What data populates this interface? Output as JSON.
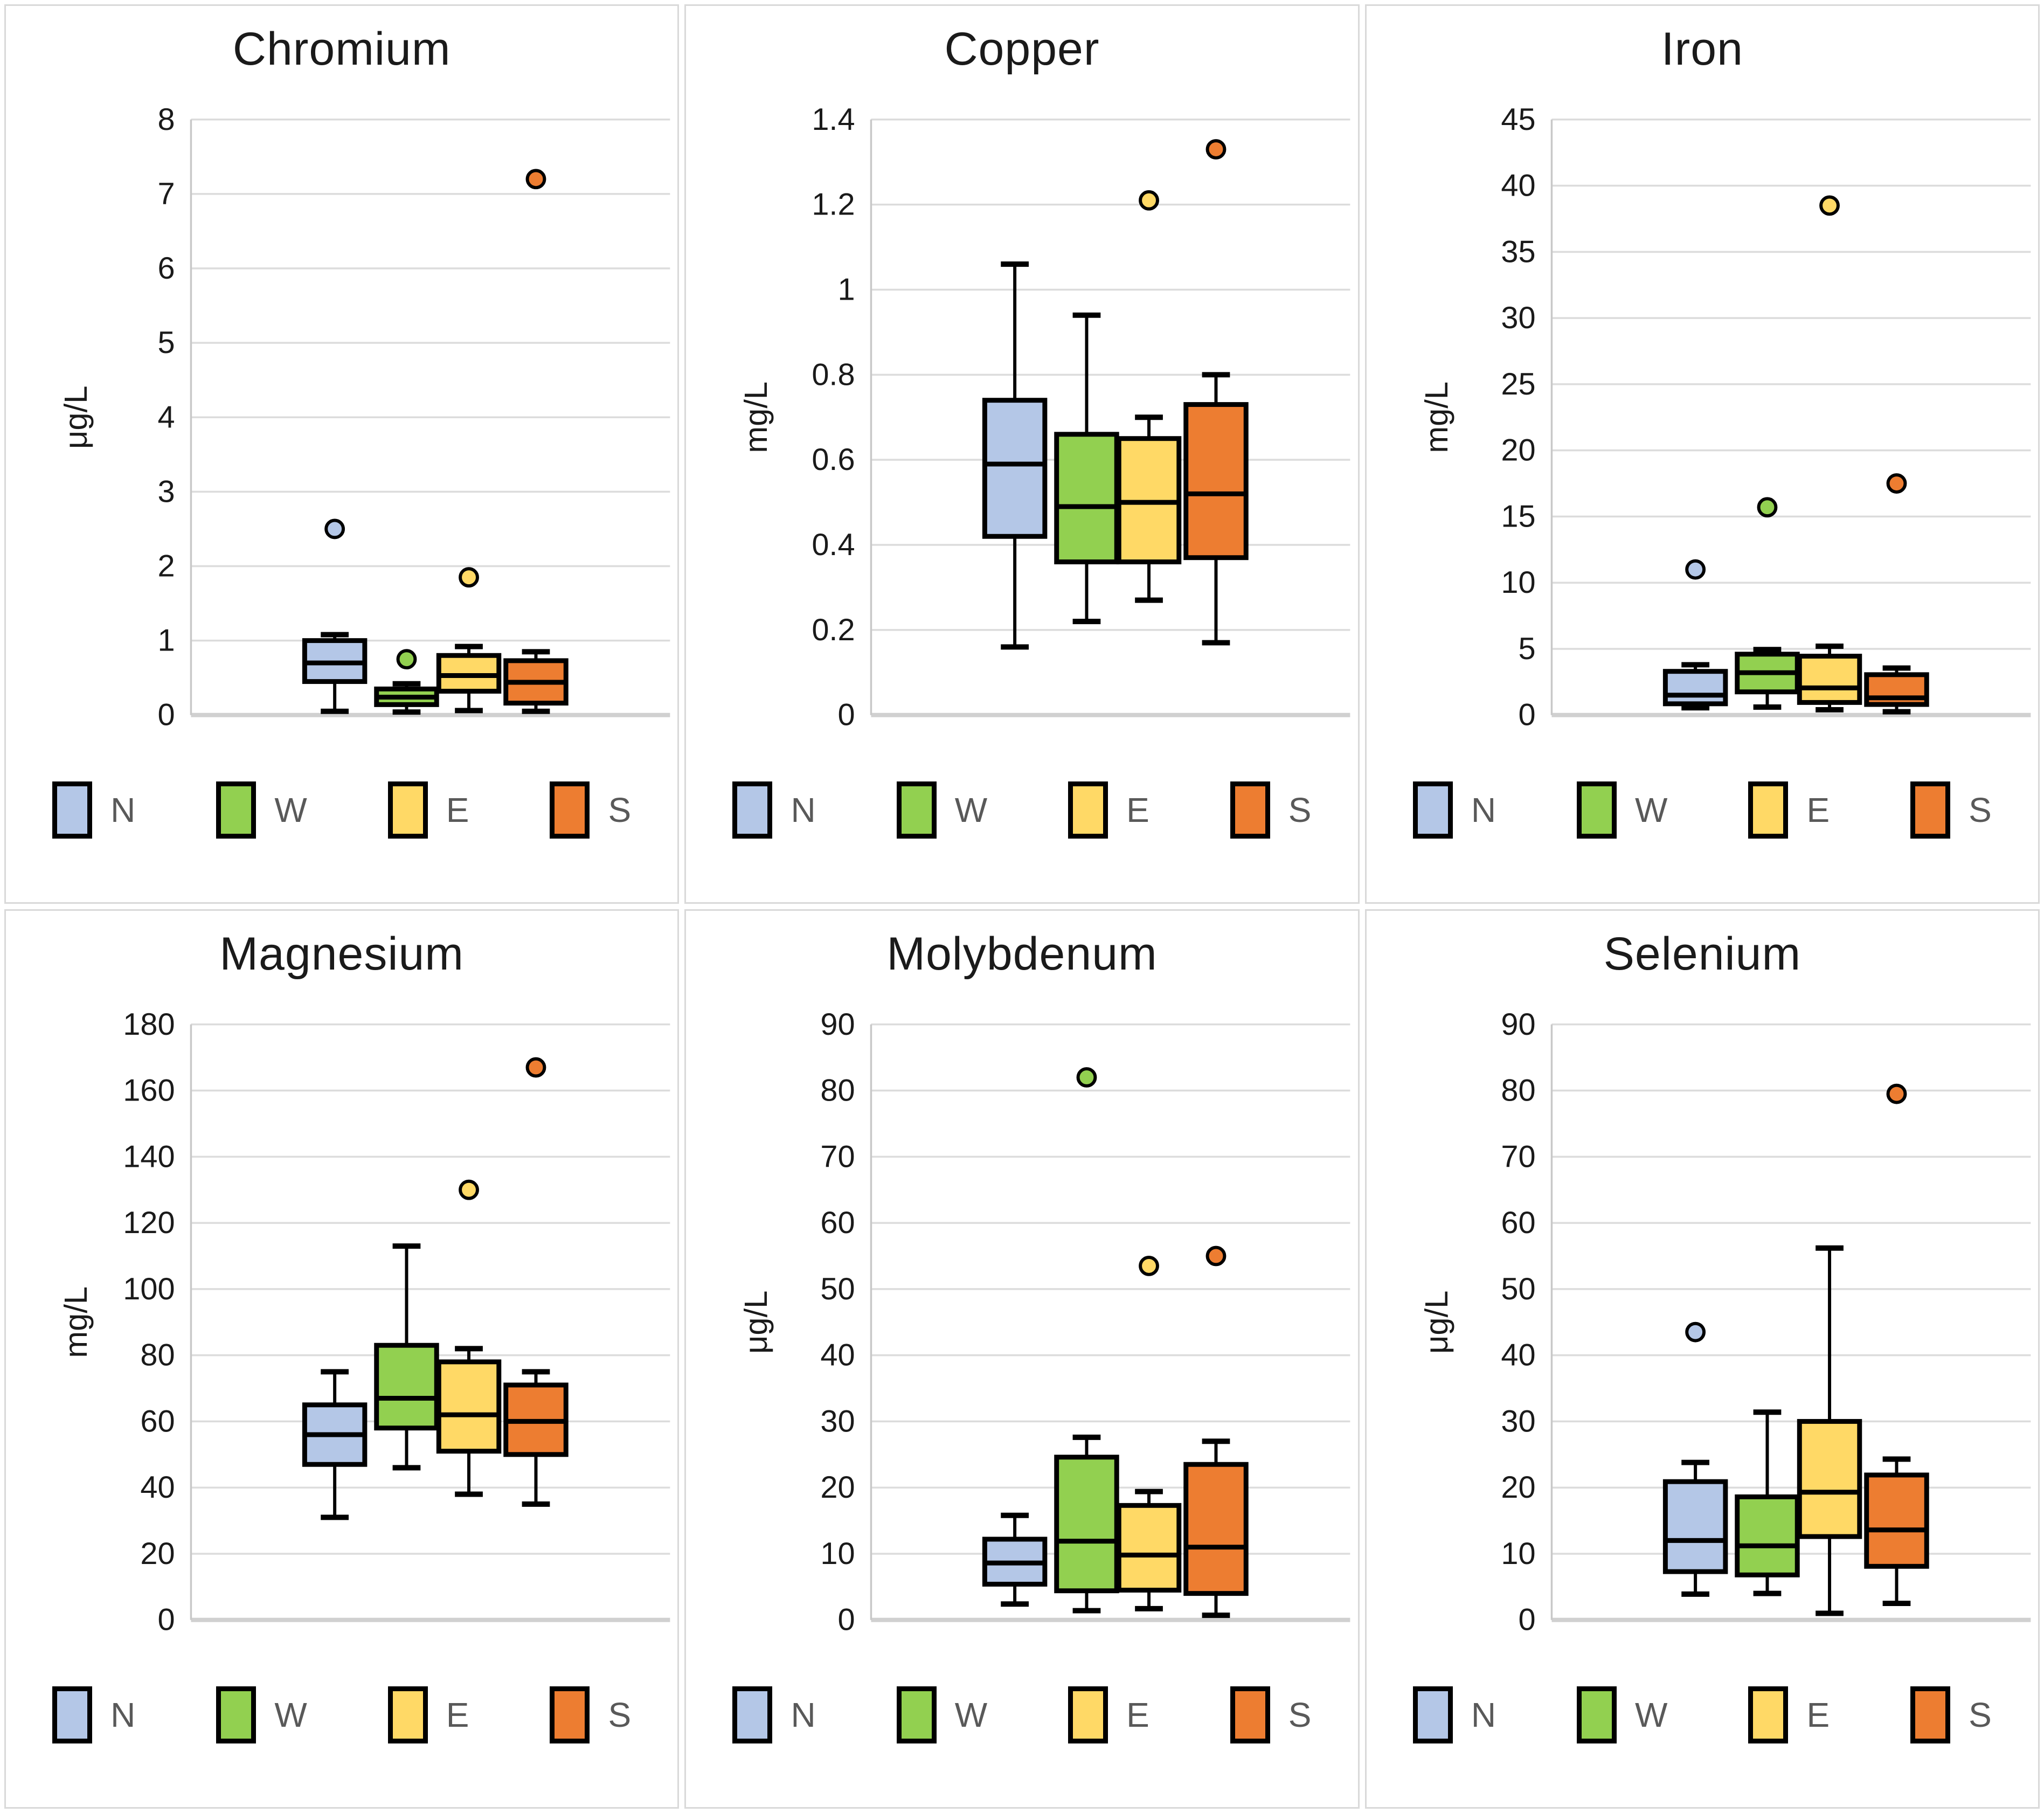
{
  "figure": {
    "layout": "2 rows x 3 columns of box-and-whisker charts",
    "background": "#ffffff",
    "panel_border": "#d9d9d9"
  },
  "colors": {
    "N": "#b4c7e7",
    "W": "#92d050",
    "E": "#ffd966",
    "S": "#ed7d31",
    "box_border": "#000000",
    "median_line": "#000000",
    "whisker": "#000000",
    "gridline": "#dcdcdc",
    "baseline": "#d0d0d0",
    "axis_line": "#c8c8c8",
    "title_text": "#1a1a1a",
    "tick_text": "#1a1a1a",
    "legend_text": "#595959"
  },
  "legend": {
    "position": "bottom",
    "items": [
      {
        "label": "N",
        "color_key": "N"
      },
      {
        "label": "W",
        "color_key": "W"
      },
      {
        "label": "E",
        "color_key": "E"
      },
      {
        "label": "S",
        "color_key": "S"
      }
    ]
  },
  "chart_data": [
    {
      "type": "boxplot",
      "title": "Chromium",
      "ylabel": "μg/L",
      "ylim": [
        0,
        8
      ],
      "yticks": [
        0,
        1,
        2,
        3,
        4,
        5,
        6,
        7,
        8
      ],
      "ytick_labels": [
        "0",
        "1",
        "2",
        "3",
        "4",
        "5",
        "6",
        "7",
        "8"
      ],
      "grid": true,
      "legend_position": "bottom",
      "series": [
        {
          "name": "N",
          "low": 0.05,
          "q1": 0.45,
          "median": 0.7,
          "q3": 1.0,
          "high": 1.08,
          "outliers": [
            2.5
          ]
        },
        {
          "name": "W",
          "low": 0.04,
          "q1": 0.14,
          "median": 0.24,
          "q3": 0.35,
          "high": 0.42,
          "outliers": [
            0.75
          ]
        },
        {
          "name": "E",
          "low": 0.06,
          "q1": 0.32,
          "median": 0.53,
          "q3": 0.8,
          "high": 0.92,
          "outliers": [
            1.85
          ]
        },
        {
          "name": "S",
          "low": 0.05,
          "q1": 0.16,
          "median": 0.44,
          "q3": 0.73,
          "high": 0.85,
          "outliers": [
            7.2
          ]
        }
      ]
    },
    {
      "type": "boxplot",
      "title": "Copper",
      "ylabel": "mg/L",
      "ylim": [
        0,
        1.4
      ],
      "yticks": [
        0,
        0.2,
        0.4,
        0.6,
        0.8,
        1,
        1.2,
        1.4
      ],
      "ytick_labels": [
        "0",
        "0.2",
        "0.4",
        "0.6",
        "0.8",
        "1",
        "1.2",
        "1.4"
      ],
      "grid": true,
      "legend_position": "bottom",
      "series": [
        {
          "name": "N",
          "low": 0.16,
          "q1": 0.42,
          "median": 0.59,
          "q3": 0.74,
          "high": 1.06,
          "outliers": []
        },
        {
          "name": "W",
          "low": 0.22,
          "q1": 0.36,
          "median": 0.49,
          "q3": 0.66,
          "high": 0.94,
          "outliers": []
        },
        {
          "name": "E",
          "low": 0.27,
          "q1": 0.36,
          "median": 0.5,
          "q3": 0.65,
          "high": 0.7,
          "outliers": [
            1.21
          ]
        },
        {
          "name": "S",
          "low": 0.17,
          "q1": 0.37,
          "median": 0.52,
          "q3": 0.73,
          "high": 0.8,
          "outliers": [
            1.33
          ]
        }
      ]
    },
    {
      "type": "boxplot",
      "title": "Iron",
      "ylabel": "mg/L",
      "ylim": [
        0,
        45
      ],
      "yticks": [
        0,
        5,
        10,
        15,
        20,
        25,
        30,
        35,
        40,
        45
      ],
      "ytick_labels": [
        "0",
        "5",
        "10",
        "15",
        "20",
        "25",
        "30",
        "35",
        "40",
        "45"
      ],
      "grid": true,
      "legend_position": "bottom",
      "series": [
        {
          "name": "N",
          "low": 0.55,
          "q1": 0.85,
          "median": 1.5,
          "q3": 3.3,
          "high": 3.8,
          "outliers": [
            11.0
          ]
        },
        {
          "name": "W",
          "low": 0.6,
          "q1": 1.75,
          "median": 3.2,
          "q3": 4.6,
          "high": 4.95,
          "outliers": [
            15.7
          ]
        },
        {
          "name": "E",
          "low": 0.4,
          "q1": 0.95,
          "median": 2.05,
          "q3": 4.45,
          "high": 5.2,
          "outliers": [
            38.5
          ]
        },
        {
          "name": "S",
          "low": 0.25,
          "q1": 0.8,
          "median": 1.3,
          "q3": 3.05,
          "high": 3.55,
          "outliers": [
            17.5
          ]
        }
      ]
    },
    {
      "type": "boxplot",
      "title": "Magnesium",
      "ylabel": "mg/L",
      "ylim": [
        0,
        180
      ],
      "yticks": [
        0,
        20,
        40,
        60,
        80,
        100,
        120,
        140,
        160,
        180
      ],
      "ytick_labels": [
        "0",
        "20",
        "40",
        "60",
        "80",
        "100",
        "120",
        "140",
        "160",
        "180"
      ],
      "grid": true,
      "legend_position": "bottom",
      "series": [
        {
          "name": "N",
          "low": 31,
          "q1": 47,
          "median": 56,
          "q3": 65,
          "high": 75,
          "outliers": []
        },
        {
          "name": "W",
          "low": 46,
          "q1": 58,
          "median": 67,
          "q3": 83,
          "high": 113,
          "outliers": []
        },
        {
          "name": "E",
          "low": 38,
          "q1": 51,
          "median": 62,
          "q3": 78,
          "high": 82,
          "outliers": [
            130
          ]
        },
        {
          "name": "S",
          "low": 35,
          "q1": 50,
          "median": 60,
          "q3": 71,
          "high": 75,
          "outliers": [
            167
          ]
        }
      ]
    },
    {
      "type": "boxplot",
      "title": "Molybdenum",
      "ylabel": "μg/L",
      "ylim": [
        0,
        90
      ],
      "yticks": [
        0,
        10,
        20,
        30,
        40,
        50,
        60,
        70,
        80,
        90
      ],
      "ytick_labels": [
        "0",
        "10",
        "20",
        "30",
        "40",
        "50",
        "60",
        "70",
        "80",
        "90"
      ],
      "grid": true,
      "legend_position": "bottom",
      "series": [
        {
          "name": "N",
          "low": 2.4,
          "q1": 5.4,
          "median": 8.6,
          "q3": 12.2,
          "high": 15.8,
          "outliers": []
        },
        {
          "name": "W",
          "low": 1.4,
          "q1": 4.4,
          "median": 11.9,
          "q3": 24.6,
          "high": 27.6,
          "outliers": [
            82
          ]
        },
        {
          "name": "E",
          "low": 1.7,
          "q1": 4.5,
          "median": 9.8,
          "q3": 17.3,
          "high": 19.4,
          "outliers": [
            53.5
          ]
        },
        {
          "name": "S",
          "low": 0.7,
          "q1": 4.0,
          "median": 11.0,
          "q3": 23.5,
          "high": 27.0,
          "outliers": [
            55
          ]
        }
      ]
    },
    {
      "type": "boxplot",
      "title": "Selenium",
      "ylabel": "μg/L",
      "ylim": [
        0,
        90
      ],
      "yticks": [
        0,
        10,
        20,
        30,
        40,
        50,
        60,
        70,
        80,
        90
      ],
      "ytick_labels": [
        "0",
        "10",
        "20",
        "30",
        "40",
        "50",
        "60",
        "70",
        "80",
        "90"
      ],
      "grid": true,
      "legend_position": "bottom",
      "series": [
        {
          "name": "N",
          "low": 3.9,
          "q1": 7.3,
          "median": 12.0,
          "q3": 20.9,
          "high": 23.8,
          "outliers": [
            43.5
          ]
        },
        {
          "name": "W",
          "low": 4.0,
          "q1": 6.8,
          "median": 11.2,
          "q3": 18.6,
          "high": 31.4,
          "outliers": []
        },
        {
          "name": "E",
          "low": 1.0,
          "q1": 12.6,
          "median": 19.3,
          "q3": 30.0,
          "high": 56.2,
          "outliers": []
        },
        {
          "name": "S",
          "low": 2.5,
          "q1": 8.1,
          "median": 13.6,
          "q3": 21.9,
          "high": 24.3,
          "outliers": [
            79.5
          ]
        }
      ]
    }
  ]
}
